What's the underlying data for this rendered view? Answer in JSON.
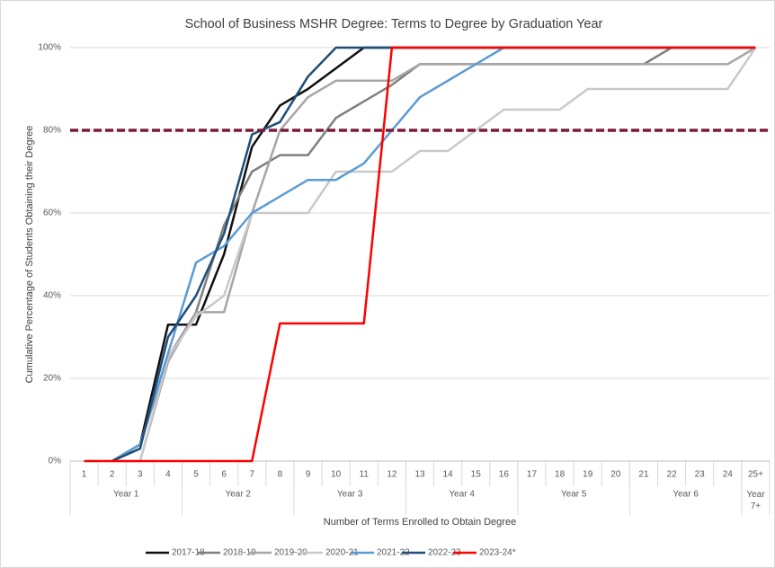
{
  "chart_data": {
    "type": "line",
    "title": "School of Business MSHR Degree: Terms to Degree by Graduation Year",
    "x_label": "Number of Terms Enrolled to Obtain Degree",
    "y_label": "Cumulative Percentage of Students Obtaining their Degree",
    "categories": [
      "1",
      "2",
      "3",
      "4",
      "5",
      "6",
      "7",
      "8",
      "9",
      "10",
      "11",
      "12",
      "13",
      "14",
      "15",
      "16",
      "17",
      "18",
      "19",
      "20",
      "21",
      "22",
      "23",
      "24",
      "25+"
    ],
    "groups": [
      {
        "label": "Year 1",
        "span": 4
      },
      {
        "label": "Year 2",
        "span": 4
      },
      {
        "label": "Year 3",
        "span": 4
      },
      {
        "label": "Year 4",
        "span": 4
      },
      {
        "label": "Year 5",
        "span": 4
      },
      {
        "label": "Year 6",
        "span": 4
      },
      {
        "label": "Year 7+",
        "span": 1
      }
    ],
    "ylim": [
      0,
      100
    ],
    "yticks": [
      {
        "value": 0,
        "label": "0%"
      },
      {
        "value": 20,
        "label": "20%"
      },
      {
        "value": 40,
        "label": "40%"
      },
      {
        "value": 60,
        "label": "60%"
      },
      {
        "value": 80,
        "label": "80%"
      },
      {
        "value": 100,
        "label": "100%"
      }
    ],
    "grid": true,
    "reference_line": {
      "value": 80,
      "color": "#7b1a3c"
    },
    "series": [
      {
        "name": "2017-18",
        "color": "#111111",
        "values": [
          null,
          0,
          4,
          33,
          33,
          50,
          76,
          86,
          90,
          95,
          100,
          100,
          100,
          100,
          100,
          100,
          100,
          100,
          100,
          100,
          100,
          100,
          100,
          100,
          100
        ]
      },
      {
        "name": "2018-19",
        "color": "#7f7f7f",
        "values": [
          null,
          0,
          4,
          25,
          36,
          57,
          70,
          74,
          74,
          83,
          87,
          91,
          96,
          96,
          96,
          96,
          96,
          96,
          96,
          96,
          96,
          100,
          100,
          100,
          100
        ]
      },
      {
        "name": "2019-20",
        "color": "#a6a6a6",
        "values": [
          null,
          0,
          0,
          24,
          36,
          36,
          60,
          80,
          88,
          92,
          92,
          92,
          96,
          96,
          96,
          96,
          96,
          96,
          96,
          96,
          96,
          96,
          96,
          96,
          100
        ]
      },
      {
        "name": "2020-21",
        "color": "#c9c9c9",
        "values": [
          null,
          null,
          0,
          25,
          35,
          40,
          60,
          60,
          60,
          70,
          70,
          70,
          75,
          75,
          80,
          85,
          85,
          85,
          90,
          90,
          90,
          90,
          90,
          90,
          100
        ]
      },
      {
        "name": "2021-22",
        "color": "#5b9bd5",
        "values": [
          null,
          0,
          4,
          26,
          48,
          52,
          60,
          64,
          68,
          68,
          72,
          80,
          88,
          92,
          96,
          100,
          100,
          100,
          100,
          100,
          100,
          100,
          100,
          100,
          100
        ]
      },
      {
        "name": "2022-23",
        "color": "#1f4e79",
        "values": [
          null,
          0,
          3,
          30,
          40,
          55,
          79,
          82,
          93,
          100,
          100,
          100,
          100,
          100,
          100,
          100,
          100,
          100,
          100,
          100,
          100,
          100,
          100,
          100,
          100
        ]
      },
      {
        "name": "2023-24*",
        "color": "#ff0000",
        "values": [
          0,
          0,
          0,
          0,
          0,
          0,
          0,
          33.3,
          33.3,
          33.3,
          33.3,
          100,
          100,
          100,
          100,
          100,
          100,
          100,
          100,
          100,
          100,
          100,
          100,
          100,
          100
        ]
      }
    ],
    "legend": "bottom"
  }
}
